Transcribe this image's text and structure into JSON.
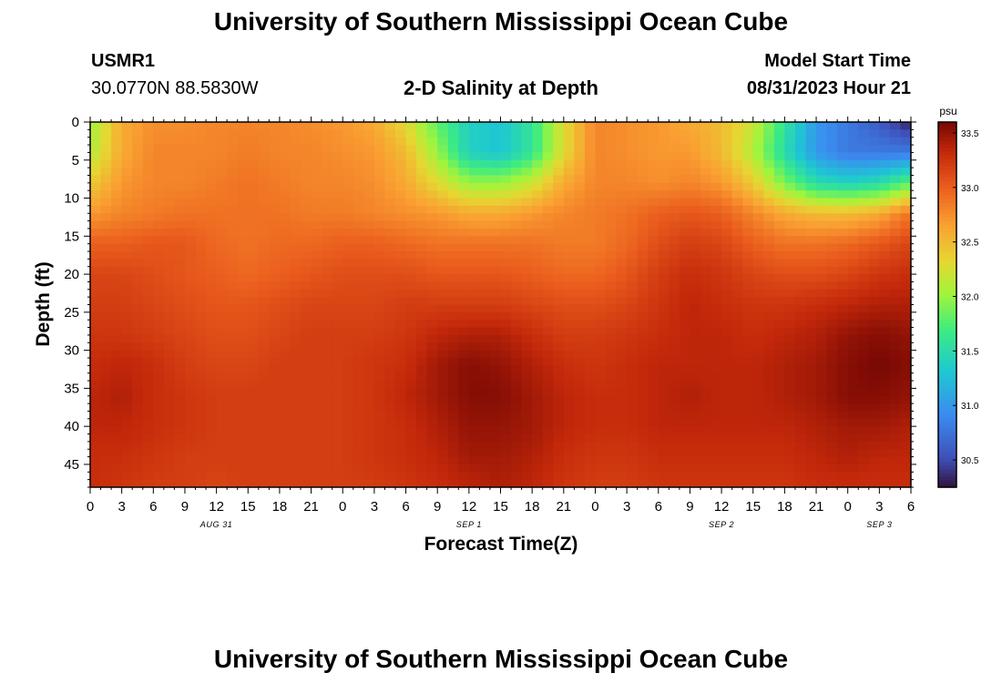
{
  "header": {
    "title": "University of Southern Mississippi Ocean Cube",
    "station_id": "USMR1",
    "coordinates": "30.0770N  88.5830W",
    "subtitle": "2-D Salinity at Depth",
    "model_label": "Model Start Time",
    "model_time": "08/31/2023 Hour 21",
    "footer_title": "University of Southern Mississippi Ocean Cube"
  },
  "chart_data": {
    "type": "heatmap",
    "title": "2-D Salinity at Depth",
    "xlabel": "Forecast Time(Z)",
    "ylabel": "Depth (ft)",
    "x_tick_labels": [
      "0",
      "3",
      "6",
      "9",
      "12",
      "15",
      "18",
      "21",
      "0",
      "3",
      "6",
      "9",
      "12",
      "15",
      "18",
      "21",
      "0",
      "3",
      "6",
      "9",
      "12",
      "15",
      "18",
      "21",
      "0",
      "3",
      "6"
    ],
    "x_range_hours": [
      0,
      78
    ],
    "date_labels": [
      {
        "label": "AUG 31",
        "hour": 12
      },
      {
        "label": "SEP 1",
        "hour": 36
      },
      {
        "label": "SEP 2",
        "hour": 60
      },
      {
        "label": "SEP 3",
        "hour": 75
      }
    ],
    "y_ticks": [
      0,
      5,
      10,
      15,
      20,
      25,
      30,
      35,
      40,
      45
    ],
    "y_range_ft": [
      0,
      48
    ],
    "colorbar": {
      "unit": "psu",
      "ticks": [
        30.5,
        31.0,
        31.5,
        32.0,
        32.5,
        33.0,
        33.5
      ],
      "tick_labels": [
        "30.5",
        "31.0",
        "31.5",
        "32.0",
        "32.5",
        "33.0",
        "33.5"
      ],
      "min": 30.25,
      "max": 33.6
    },
    "depth_ft": [
      0,
      4,
      8,
      12,
      16,
      20,
      24,
      28,
      32,
      36,
      40,
      44,
      48
    ],
    "time_hours": [
      0,
      3,
      6,
      9,
      12,
      15,
      18,
      21,
      24,
      27,
      30,
      33,
      36,
      39,
      42,
      45,
      48,
      51,
      54,
      57,
      60,
      63,
      66,
      69,
      72,
      75,
      78
    ],
    "salinity_psu": [
      [
        32.0,
        32.6,
        32.75,
        32.75,
        32.8,
        32.8,
        32.8,
        32.75,
        32.7,
        32.6,
        32.3,
        31.8,
        31.4,
        31.3,
        31.6,
        32.3,
        32.8,
        32.75,
        32.7,
        32.6,
        32.5,
        32.2,
        31.6,
        31.0,
        30.8,
        30.6,
        30.3
      ],
      [
        32.1,
        32.6,
        32.8,
        32.8,
        32.8,
        32.85,
        32.8,
        32.8,
        32.75,
        32.7,
        32.5,
        32.0,
        31.4,
        31.3,
        31.6,
        32.3,
        32.8,
        32.75,
        32.7,
        32.7,
        32.5,
        32.1,
        31.5,
        31.0,
        30.8,
        30.8,
        30.8
      ],
      [
        32.4,
        32.7,
        32.8,
        32.8,
        32.85,
        32.9,
        32.85,
        32.8,
        32.8,
        32.75,
        32.6,
        32.3,
        32.0,
        32.0,
        32.2,
        32.6,
        32.8,
        32.8,
        32.75,
        32.8,
        32.7,
        32.4,
        31.9,
        31.5,
        31.4,
        31.5,
        31.8
      ],
      [
        32.7,
        32.8,
        32.85,
        32.9,
        32.9,
        32.9,
        32.9,
        32.85,
        32.85,
        32.8,
        32.75,
        32.7,
        32.6,
        32.6,
        32.7,
        32.8,
        32.85,
        32.9,
        33.0,
        33.05,
        33.0,
        32.8,
        32.6,
        32.5,
        32.5,
        32.6,
        32.9
      ],
      [
        33.0,
        33.0,
        33.05,
        33.05,
        32.95,
        32.9,
        32.95,
        32.95,
        33.0,
        33.0,
        32.95,
        32.9,
        32.9,
        32.9,
        32.9,
        32.85,
        32.85,
        32.95,
        33.1,
        33.2,
        33.15,
        33.0,
        32.9,
        32.9,
        32.95,
        33.05,
        33.15
      ],
      [
        33.15,
        33.15,
        33.1,
        33.05,
        33.0,
        32.95,
        33.0,
        33.05,
        33.1,
        33.1,
        33.1,
        33.05,
        33.05,
        33.05,
        33.0,
        32.95,
        32.95,
        33.05,
        33.2,
        33.3,
        33.25,
        33.15,
        33.1,
        33.1,
        33.15,
        33.25,
        33.3
      ],
      [
        33.2,
        33.2,
        33.15,
        33.1,
        33.05,
        33.05,
        33.1,
        33.15,
        33.15,
        33.15,
        33.2,
        33.2,
        33.2,
        33.2,
        33.15,
        33.1,
        33.1,
        33.15,
        33.25,
        33.35,
        33.3,
        33.25,
        33.25,
        33.3,
        33.35,
        33.4,
        33.4
      ],
      [
        33.25,
        33.25,
        33.2,
        33.15,
        33.1,
        33.1,
        33.15,
        33.2,
        33.2,
        33.2,
        33.25,
        33.35,
        33.4,
        33.4,
        33.3,
        33.2,
        33.2,
        33.25,
        33.3,
        33.35,
        33.35,
        33.3,
        33.35,
        33.4,
        33.5,
        33.55,
        33.5
      ],
      [
        33.3,
        33.35,
        33.3,
        33.2,
        33.15,
        33.15,
        33.2,
        33.2,
        33.2,
        33.25,
        33.3,
        33.45,
        33.55,
        33.5,
        33.4,
        33.3,
        33.25,
        33.3,
        33.35,
        33.35,
        33.35,
        33.35,
        33.4,
        33.45,
        33.55,
        33.6,
        33.55
      ],
      [
        33.35,
        33.4,
        33.3,
        33.25,
        33.2,
        33.2,
        33.2,
        33.2,
        33.2,
        33.25,
        33.35,
        33.45,
        33.55,
        33.55,
        33.45,
        33.35,
        33.3,
        33.3,
        33.35,
        33.4,
        33.35,
        33.35,
        33.4,
        33.45,
        33.55,
        33.55,
        33.5
      ],
      [
        33.35,
        33.35,
        33.3,
        33.25,
        33.2,
        33.2,
        33.2,
        33.2,
        33.2,
        33.25,
        33.3,
        33.4,
        33.5,
        33.5,
        33.45,
        33.35,
        33.3,
        33.3,
        33.35,
        33.35,
        33.35,
        33.35,
        33.35,
        33.4,
        33.45,
        33.45,
        33.4
      ],
      [
        33.3,
        33.3,
        33.25,
        33.2,
        33.2,
        33.2,
        33.2,
        33.2,
        33.2,
        33.25,
        33.3,
        33.35,
        33.45,
        33.45,
        33.4,
        33.3,
        33.25,
        33.25,
        33.3,
        33.3,
        33.3,
        33.3,
        33.3,
        33.35,
        33.4,
        33.35,
        33.35
      ],
      [
        33.3,
        33.25,
        33.2,
        33.2,
        33.15,
        33.2,
        33.2,
        33.2,
        33.2,
        33.2,
        33.25,
        33.3,
        33.35,
        33.4,
        33.35,
        33.25,
        33.2,
        33.2,
        33.25,
        33.25,
        33.25,
        33.25,
        33.25,
        33.3,
        33.3,
        33.3,
        33.3
      ]
    ]
  }
}
